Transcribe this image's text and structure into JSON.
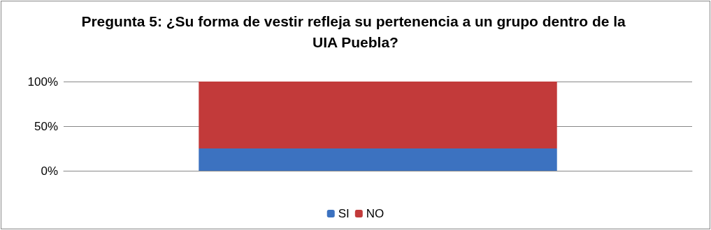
{
  "chart_data": {
    "type": "bar",
    "title": "Pregunta 5: ¿Su forma de vestir refleja su pertenencia a un grupo dentro de la UIA Puebla?",
    "categories": [
      null
    ],
    "stacked": true,
    "series": [
      {
        "name": "SI",
        "color": "#3c72c0",
        "values": [
          25
        ]
      },
      {
        "name": "NO",
        "color": "#c23a3a",
        "values": [
          75
        ]
      }
    ],
    "ylim": [
      0,
      100
    ],
    "yticks": [
      {
        "value": 0,
        "label": "0%"
      },
      {
        "value": 50,
        "label": "50%"
      },
      {
        "value": 100,
        "label": "100%"
      }
    ],
    "grid": "y",
    "legend": "bottom"
  }
}
